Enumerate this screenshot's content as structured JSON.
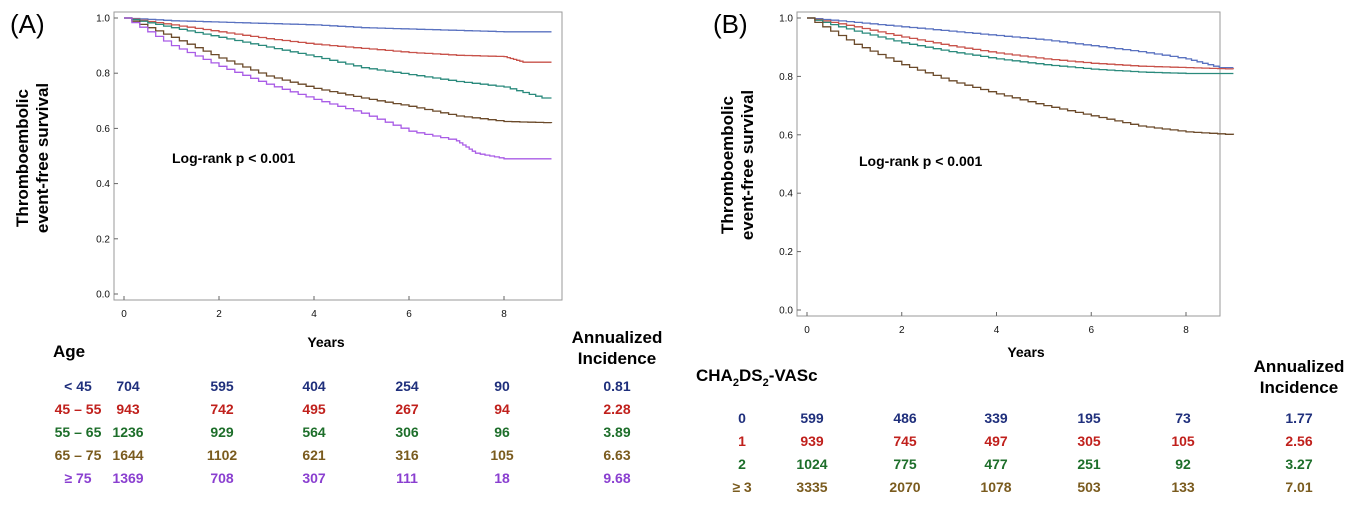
{
  "chart_data": [
    {
      "type": "line",
      "panel_label": "(A)",
      "xlabel": "Years",
      "ylabel_lines": [
        "Thromboembolic",
        "event-free survival"
      ],
      "annotation": "Log-rank p < 0.001",
      "xlim": [
        0,
        9
      ],
      "ylim": [
        0,
        1.0
      ],
      "xticks": [
        0,
        2,
        4,
        6,
        8
      ],
      "yticks": [
        0.0,
        0.2,
        0.4,
        0.6,
        0.8,
        1.0
      ],
      "ytick_labels": [
        "0.0",
        "0.2",
        "0.4",
        "0.6",
        "0.8",
        "1.0"
      ],
      "xtick_labels": [
        "0",
        "2",
        "4",
        "6",
        "8"
      ],
      "series": [
        {
          "color": "#5a72c0",
          "x": [
            0,
            1,
            2,
            3,
            4,
            5,
            6,
            7,
            8,
            9
          ],
          "y": [
            1.0,
            0.99,
            0.985,
            0.98,
            0.975,
            0.965,
            0.96,
            0.955,
            0.95,
            0.95
          ]
        },
        {
          "color": "#c8524a",
          "x": [
            0,
            1,
            2,
            3,
            4,
            5,
            6,
            7,
            8,
            8.4,
            9
          ],
          "y": [
            1.0,
            0.975,
            0.95,
            0.925,
            0.905,
            0.89,
            0.875,
            0.865,
            0.86,
            0.84,
            0.84
          ]
        },
        {
          "color": "#2a8a7c",
          "x": [
            0,
            1,
            2,
            3,
            4,
            5,
            6,
            7,
            8,
            8.8,
            9
          ],
          "y": [
            1.0,
            0.965,
            0.93,
            0.895,
            0.86,
            0.82,
            0.795,
            0.77,
            0.75,
            0.71,
            0.71
          ]
        },
        {
          "color": "#6b4a2a",
          "x": [
            0,
            1,
            2,
            3,
            4,
            5,
            6,
            7,
            8,
            9
          ],
          "y": [
            1.0,
            0.93,
            0.855,
            0.79,
            0.745,
            0.71,
            0.68,
            0.645,
            0.625,
            0.62
          ]
        },
        {
          "color": "#a95ce6",
          "x": [
            0,
            1,
            2,
            3,
            4,
            5,
            6,
            7,
            7.4,
            8,
            9
          ],
          "y": [
            1.0,
            0.9,
            0.825,
            0.76,
            0.705,
            0.655,
            0.59,
            0.555,
            0.51,
            0.49,
            0.49
          ]
        }
      ],
      "table": {
        "group_title": "Age",
        "incidence_title_lines": [
          "Annualized",
          "Incidence"
        ],
        "rows": [
          {
            "label": "< 45",
            "color": "#1f2f7c",
            "counts": [
              "704",
              "595",
              "404",
              "254",
              "90"
            ],
            "incidence": "0.81"
          },
          {
            "label": "45 – 55",
            "color": "#c0201c",
            "counts": [
              "943",
              "742",
              "495",
              "267",
              "94"
            ],
            "incidence": "2.28"
          },
          {
            "label": "55 – 65",
            "color": "#1d6e2a",
            "counts": [
              "1236",
              "929",
              "564",
              "306",
              "96"
            ],
            "incidence": "3.89"
          },
          {
            "label": "65 – 75",
            "color": "#7a5b1e",
            "counts": [
              "1644",
              "1102",
              "621",
              "316",
              "105"
            ],
            "incidence": "6.63"
          },
          {
            "label": "≥ 75",
            "color": "#8a3fd0",
            "counts": [
              "1369",
              "708",
              "307",
              "111",
              "18"
            ],
            "incidence": "9.68"
          }
        ]
      }
    },
    {
      "type": "line",
      "panel_label": "(B)",
      "xlabel": "Years",
      "ylabel_lines": [
        "Thromboembolic",
        "event-free survival"
      ],
      "annotation": "Log-rank p < 0.001",
      "xlim": [
        0,
        9
      ],
      "ylim": [
        0,
        1.0
      ],
      "xticks": [
        0,
        2,
        4,
        6,
        8
      ],
      "yticks": [
        0.0,
        0.2,
        0.4,
        0.6,
        0.8,
        1.0
      ],
      "ytick_labels": [
        "0.0",
        "0.2",
        "0.4",
        "0.6",
        "0.8",
        "1.0"
      ],
      "xtick_labels": [
        "0",
        "2",
        "4",
        "6",
        "8"
      ],
      "series": [
        {
          "color": "#5a72c0",
          "x": [
            0,
            1,
            2,
            3,
            4,
            5,
            6,
            7,
            8,
            8.7,
            9
          ],
          "y": [
            1.0,
            0.985,
            0.97,
            0.955,
            0.94,
            0.925,
            0.905,
            0.885,
            0.86,
            0.83,
            0.83
          ]
        },
        {
          "color": "#c8524a",
          "x": [
            0,
            1,
            2,
            3,
            4,
            5,
            6,
            7,
            8,
            9
          ],
          "y": [
            1.0,
            0.97,
            0.935,
            0.905,
            0.88,
            0.86,
            0.845,
            0.835,
            0.83,
            0.825
          ]
        },
        {
          "color": "#2a8a7c",
          "x": [
            0,
            1,
            2,
            3,
            4,
            5,
            6,
            7,
            8,
            9
          ],
          "y": [
            1.0,
            0.955,
            0.915,
            0.885,
            0.86,
            0.84,
            0.825,
            0.815,
            0.81,
            0.81
          ]
        },
        {
          "color": "#6b4a2a",
          "x": [
            0,
            1,
            2,
            3,
            4,
            5,
            6,
            7,
            8,
            9
          ],
          "y": [
            1.0,
            0.91,
            0.84,
            0.785,
            0.74,
            0.7,
            0.665,
            0.63,
            0.61,
            0.6
          ]
        }
      ],
      "table": {
        "group_title_main": "CHA",
        "group_title_sub1": "2",
        "group_title_mid": "DS",
        "group_title_sub2": "2",
        "group_title_end": "-VASc",
        "incidence_title_lines": [
          "Annualized",
          "Incidence"
        ],
        "rows": [
          {
            "label": "0",
            "color": "#1f2f7c",
            "counts": [
              "599",
              "486",
              "339",
              "195",
              "73"
            ],
            "incidence": "1.77"
          },
          {
            "label": "1",
            "color": "#c0201c",
            "counts": [
              "939",
              "745",
              "497",
              "305",
              "105"
            ],
            "incidence": "2.56"
          },
          {
            "label": "2",
            "color": "#1d6e2a",
            "counts": [
              "1024",
              "775",
              "477",
              "251",
              "92"
            ],
            "incidence": "3.27"
          },
          {
            "label": "≥ 3",
            "color": "#7a5b1e",
            "counts": [
              "3335",
              "2070",
              "1078",
              "503",
              "133"
            ],
            "incidence": "7.01"
          }
        ]
      }
    }
  ]
}
